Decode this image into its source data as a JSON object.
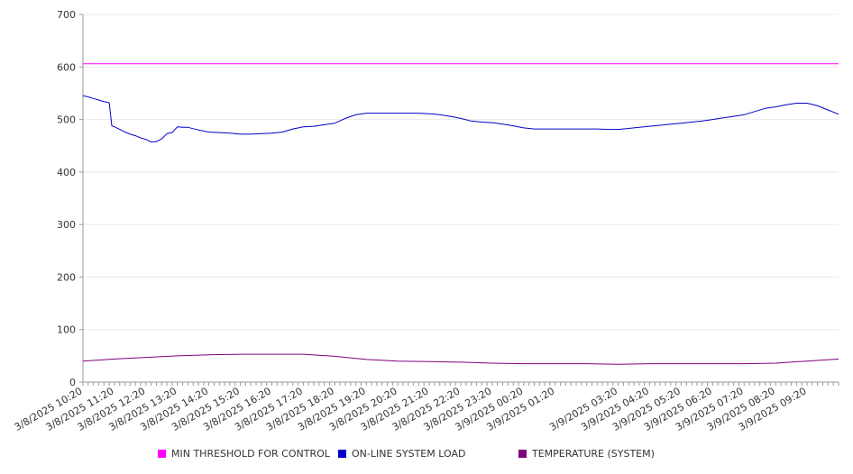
{
  "chart_data": {
    "type": "line",
    "title": "",
    "xlabel": "",
    "ylabel": "",
    "ylim": [
      0,
      700
    ],
    "yticks": [
      0,
      100,
      200,
      300,
      400,
      500,
      600,
      700
    ],
    "grid": "horizontal",
    "legend_position": "bottom",
    "x_tick_labels": [
      "3/8/2025 10:20",
      "3/8/2025 11:20",
      "3/8/2025 12:20",
      "3/8/2025 13:20",
      "3/8/2025 14:20",
      "3/8/2025 15:20",
      "3/8/2025 16:20",
      "3/8/2025 17:20",
      "3/8/2025 18:20",
      "3/8/2025 19:20",
      "3/8/2025 20:20",
      "3/8/2025 21:20",
      "3/8/2025 22:20",
      "3/8/2025 23:20",
      "3/9/2025 00:20",
      "3/9/2025 01:20",
      "3/9/2025 03:20",
      "3/9/2025 04:20",
      "3/9/2025 05:20",
      "3/9/2025 06:20",
      "3/9/2025 07:20",
      "3/9/2025 08:20",
      "3/9/2025 09:20"
    ],
    "x_range": [
      "3/8/2025 10:20",
      "3/9/2025 10:20"
    ],
    "series": [
      {
        "name": "MIN THRESHOLD FOR CONTROL",
        "color": "#ff00ff",
        "x": [
          "3/8/2025 10:20",
          "3/9/2025 10:20"
        ],
        "y": [
          606,
          606
        ]
      },
      {
        "name": "ON-LINE SYSTEM LOAD",
        "color": "#0000cc",
        "x": [
          "3/8/2025 10:20",
          "3/8/2025 10:30",
          "3/8/2025 10:40",
          "3/8/2025 10:50",
          "3/8/2025 11:00",
          "3/8/2025 11:10",
          "3/8/2025 11:15",
          "3/8/2025 11:20",
          "3/8/2025 11:30",
          "3/8/2025 11:40",
          "3/8/2025 11:50",
          "3/8/2025 12:00",
          "3/8/2025 12:10",
          "3/8/2025 12:20",
          "3/8/2025 12:30",
          "3/8/2025 12:40",
          "3/8/2025 12:50",
          "3/8/2025 13:00",
          "3/8/2025 13:10",
          "3/8/2025 13:20",
          "3/8/2025 13:30",
          "3/8/2025 13:40",
          "3/8/2025 14:00",
          "3/8/2025 14:20",
          "3/8/2025 14:40",
          "3/8/2025 15:00",
          "3/8/2025 15:20",
          "3/8/2025 15:40",
          "3/8/2025 16:00",
          "3/8/2025 16:20",
          "3/8/2025 16:40",
          "3/8/2025 17:00",
          "3/8/2025 17:20",
          "3/8/2025 17:40",
          "3/8/2025 18:00",
          "3/8/2025 18:20",
          "3/8/2025 18:40",
          "3/8/2025 19:00",
          "3/8/2025 19:20",
          "3/8/2025 19:40",
          "3/8/2025 20:00",
          "3/8/2025 20:20",
          "3/8/2025 20:40",
          "3/8/2025 21:00",
          "3/8/2025 21:20",
          "3/8/2025 21:40",
          "3/8/2025 22:00",
          "3/8/2025 22:20",
          "3/8/2025 22:40",
          "3/8/2025 23:00",
          "3/8/2025 23:20",
          "3/8/2025 23:40",
          "3/9/2025 00:00",
          "3/9/2025 00:20",
          "3/9/2025 00:40",
          "3/9/2025 01:00",
          "3/9/2025 01:20",
          "3/9/2025 01:40",
          "3/9/2025 02:00",
          "3/9/2025 02:20",
          "3/9/2025 02:40",
          "3/9/2025 03:00",
          "3/9/2025 03:20",
          "3/9/2025 03:40",
          "3/9/2025 04:00",
          "3/9/2025 04:20",
          "3/9/2025 04:40",
          "3/9/2025 05:00",
          "3/9/2025 05:20",
          "3/9/2025 05:40",
          "3/9/2025 06:00",
          "3/9/2025 06:20",
          "3/9/2025 06:40",
          "3/9/2025 07:00",
          "3/9/2025 07:20",
          "3/9/2025 07:40",
          "3/9/2025 08:00",
          "3/9/2025 08:20",
          "3/9/2025 08:40",
          "3/9/2025 09:00",
          "3/9/2025 09:20",
          "3/9/2025 09:40",
          "3/9/2025 10:00",
          "3/9/2025 10:20"
        ],
        "y": [
          545,
          543,
          540,
          537,
          534,
          532,
          488,
          486,
          481,
          476,
          472,
          469,
          465,
          462,
          457,
          458,
          463,
          473,
          475,
          486,
          485,
          485,
          480,
          476,
          475,
          474,
          472,
          472,
          473,
          474,
          476,
          482,
          486,
          487,
          490,
          493,
          502,
          509,
          512,
          512,
          512,
          512,
          512,
          512,
          511,
          509,
          506,
          502,
          497,
          495,
          494,
          491,
          488,
          484,
          482,
          482,
          482,
          482,
          482,
          482,
          482,
          481,
          481,
          483,
          485,
          487,
          489,
          491,
          493,
          495,
          497,
          500,
          503,
          506,
          509,
          515,
          521,
          524,
          528,
          531,
          531,
          526,
          518,
          510
        ]
      },
      {
        "name": "TEMPERATURE (SYSTEM)",
        "color": "#800080",
        "x": [
          "3/8/2025 10:20",
          "3/8/2025 11:20",
          "3/8/2025 12:20",
          "3/8/2025 13:20",
          "3/8/2025 14:20",
          "3/8/2025 15:20",
          "3/8/2025 16:20",
          "3/8/2025 17:20",
          "3/8/2025 18:20",
          "3/8/2025 19:20",
          "3/8/2025 20:20",
          "3/8/2025 21:20",
          "3/8/2025 22:20",
          "3/8/2025 23:20",
          "3/9/2025 00:20",
          "3/9/2025 01:20",
          "3/9/2025 02:20",
          "3/9/2025 03:20",
          "3/9/2025 04:20",
          "3/9/2025 05:20",
          "3/9/2025 06:20",
          "3/9/2025 07:20",
          "3/9/2025 08:20",
          "3/9/2025 09:20",
          "3/9/2025 10:20"
        ],
        "y": [
          40,
          44,
          47,
          50,
          52,
          53,
          53,
          53,
          49,
          43,
          40,
          39,
          38,
          36,
          35,
          35,
          35,
          34,
          35,
          35,
          35,
          35,
          36,
          40,
          44
        ]
      }
    ]
  }
}
